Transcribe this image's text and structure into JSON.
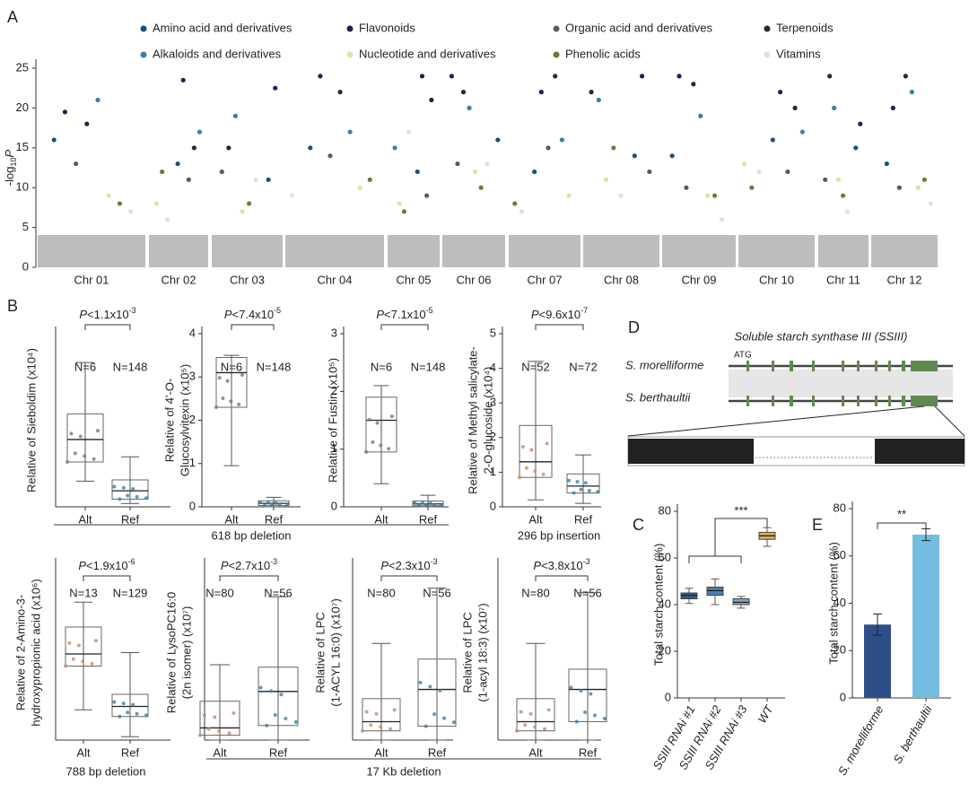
{
  "panel_labels": [
    "A",
    "B",
    "C",
    "D",
    "E"
  ],
  "groups": [
    "618 bp deletion",
    "296 bp insertion",
    "788 bp deletion",
    "17 Kb deletion"
  ],
  "diagram": {
    "title": "Soluble starch synthase III (SSIII)",
    "rows": [
      "S. morelliforme",
      "S. berthaultii"
    ],
    "start": "ATG"
  },
  "chart_data": [
    {
      "type": "manhattan",
      "ylabel": {
        "base": "-log",
        "sub": "10",
        "italic": "P"
      },
      "categories": [
        "Chr 01",
        "Chr 02",
        "Chr 03",
        "Chr 04",
        "Chr 05",
        "Chr 06",
        "Chr 07",
        "Chr 08",
        "Chr 09",
        "Chr 10",
        "Chr 11",
        "Chr 12"
      ],
      "ylim": [
        0,
        25
      ],
      "yticks": [
        0,
        5,
        10,
        15,
        20,
        25
      ],
      "series": [
        {
          "name": "Amino acid and derivatives",
          "color": "#1f4e79",
          "values": [
            16,
            13,
            11,
            15,
            12,
            16,
            12,
            14,
            14,
            16,
            15,
            13
          ]
        },
        {
          "name": "Flavonoids",
          "color": "#1a2450",
          "values": [
            19.5,
            23.5,
            22.5,
            24,
            24,
            24,
            22,
            24,
            24,
            22,
            18,
            20
          ]
        },
        {
          "name": "Organic acid and derivatives",
          "color": "#5a5a5a",
          "values": [
            13,
            11,
            12,
            14,
            9,
            13,
            15,
            12,
            10,
            12,
            11,
            10
          ]
        },
        {
          "name": "Terpenoids",
          "color": "#1c2b3a",
          "values": [
            18,
            15,
            15,
            22,
            21,
            22,
            24,
            22,
            23,
            20,
            24,
            24
          ]
        },
        {
          "name": "Alkaloids and derivatives",
          "color": "#3a7fa8",
          "values": [
            21,
            17,
            19,
            17,
            15,
            20,
            16,
            21,
            19,
            17,
            20,
            22
          ]
        },
        {
          "name": "Nucleotide and derivatives",
          "color": "#e3e0a0",
          "values": [
            9,
            8,
            7,
            10,
            8,
            12,
            9,
            11,
            9,
            13,
            11,
            10
          ]
        },
        {
          "name": "Phenolic acids",
          "color": "#6b7a3a",
          "values": [
            8,
            12,
            8,
            11,
            7,
            10,
            8,
            15,
            9,
            10,
            9,
            11
          ]
        },
        {
          "name": "Vitamins",
          "color": "#dfe4cf",
          "values": [
            7,
            6,
            11,
            9,
            17,
            13,
            7,
            9,
            6,
            12,
            7,
            8
          ]
        }
      ]
    },
    {
      "type": "box",
      "ylabel": [
        "Relative of Sieboldim  (x10⁴)"
      ],
      "pvalue": {
        "prefix": "P",
        "base": "<1.1x10",
        "exp": "-3"
      },
      "categories": [
        "Alt",
        "Ref"
      ],
      "n_labels": [
        "N=6",
        "N=148"
      ],
      "ylim": [
        0,
        2.7
      ],
      "colors": [
        "#777",
        "#3a7fa8"
      ],
      "boxes": [
        {
          "min": 0.4,
          "q1": 0.7,
          "median": 1.05,
          "q3": 1.45,
          "max": 2.25
        },
        {
          "min": 0.05,
          "q1": 0.12,
          "median": 0.25,
          "q3": 0.42,
          "max": 0.78
        }
      ]
    },
    {
      "type": "box",
      "ylabel": [
        "Relative of 4'-O-",
        "Glucosylvitexin  (x10⁵)"
      ],
      "pvalue": {
        "prefix": "P",
        "base": "<7.4x10",
        "exp": "-5"
      },
      "categories": [
        "Alt",
        "Ref"
      ],
      "n_labels": [
        "N=6",
        "N=148"
      ],
      "ylim": [
        0,
        4
      ],
      "yticks": [
        0,
        1,
        2,
        3,
        4
      ],
      "colors": [
        "#777",
        "#3a7fa8"
      ],
      "boxes": [
        {
          "min": 0.95,
          "q1": 2.3,
          "median": 3.1,
          "q3": 3.45,
          "max": 3.5
        },
        {
          "min": 0,
          "q1": 0.03,
          "median": 0.08,
          "q3": 0.14,
          "max": 0.22
        }
      ]
    },
    {
      "type": "box",
      "ylabel": [
        "Relative of Fustin  (x10⁵)"
      ],
      "pvalue": {
        "prefix": "P",
        "base": "<7.1x10",
        "exp": "-5"
      },
      "categories": [
        "Alt",
        "Ref"
      ],
      "n_labels": [
        "N=6",
        "N=148"
      ],
      "ylim": [
        0,
        3
      ],
      "yticks": [
        0,
        1,
        2,
        3
      ],
      "colors": [
        "#777",
        "#3a7fa8"
      ],
      "boxes": [
        {
          "min": 0.4,
          "q1": 0.95,
          "median": 1.5,
          "q3": 1.9,
          "max": 2.1
        },
        {
          "min": 0,
          "q1": 0.02,
          "median": 0.05,
          "q3": 0.1,
          "max": 0.2
        }
      ]
    },
    {
      "type": "box",
      "ylabel": [
        "Relative of Methyl salicylate-",
        "2-O-glucoside  (x10⁴)"
      ],
      "pvalue": {
        "prefix": "P",
        "base": "<9.6x10",
        "exp": "-7"
      },
      "categories": [
        "Alt",
        "Ref"
      ],
      "n_labels": [
        "N=52",
        "N=72"
      ],
      "ylim": [
        0,
        5
      ],
      "yticks": [
        0,
        1,
        2,
        3,
        4,
        5
      ],
      "colors": [
        "#c98a6a",
        "#3a7fa8"
      ],
      "boxes": [
        {
          "min": 0.2,
          "q1": 0.85,
          "median": 1.3,
          "q3": 2.35,
          "max": 4.2
        },
        {
          "min": 0.1,
          "q1": 0.4,
          "median": 0.6,
          "q3": 0.95,
          "max": 1.5
        }
      ]
    },
    {
      "type": "box",
      "ylabel": [
        "Relative of 2-Amino-3-",
        "hydroxypropionic acid  (x10⁶)"
      ],
      "pvalue": {
        "prefix": "P",
        "base": "<1.9x10",
        "exp": "-6"
      },
      "categories": [
        "Alt",
        "Ref"
      ],
      "n_labels": [
        "N=13",
        "N=129"
      ],
      "ylim": [
        0,
        2.6
      ],
      "colors": [
        "#c98a6a",
        "#3a7fa8"
      ],
      "boxes": [
        {
          "min": 0.45,
          "q1": 1.1,
          "median": 1.28,
          "q3": 1.68,
          "max": 2.05
        },
        {
          "min": 0.05,
          "q1": 0.35,
          "median": 0.5,
          "q3": 0.68,
          "max": 1.3
        }
      ]
    },
    {
      "type": "box",
      "ylabel": [
        "Relative of LysoPC16:0",
        "(2n isomer)  (x10⁷)"
      ],
      "pvalue": {
        "prefix": "P",
        "base": "<2.7x10",
        "exp": "-3"
      },
      "categories": [
        "Alt",
        "Ref"
      ],
      "n_labels": [
        "N=80",
        "N=56"
      ],
      "ylim": [
        0,
        3.6
      ],
      "colors": [
        "#c98a6a",
        "#3a7fa8"
      ],
      "boxes": [
        {
          "min": 0,
          "q1": 0.1,
          "median": 0.25,
          "q3": 0.8,
          "max": 1.55
        },
        {
          "min": 0,
          "q1": 0.3,
          "median": 1.0,
          "q3": 1.5,
          "max": 2.95
        }
      ]
    },
    {
      "type": "box",
      "ylabel": [
        "Relative of LPC",
        "(1-ACYL 16:0)  (x10⁷)"
      ],
      "pvalue": {
        "prefix": "P",
        "base": "<2.3x10",
        "exp": "-3"
      },
      "categories": [
        "Alt",
        "Ref"
      ],
      "n_labels": [
        "N=80",
        "N=56"
      ],
      "ylim": [
        0,
        1.9
      ],
      "colors": [
        "#c98a6a",
        "#3a7fa8"
      ],
      "boxes": [
        {
          "min": 0,
          "q1": 0.1,
          "median": 0.2,
          "q3": 0.45,
          "max": 1.05
        },
        {
          "min": 0,
          "q1": 0.15,
          "median": 0.55,
          "q3": 0.88,
          "max": 1.65
        }
      ]
    },
    {
      "type": "box",
      "ylabel": [
        "Relative of LPC",
        "(1-acyl 18:3)  (x10⁷)"
      ],
      "pvalue": {
        "prefix": "P",
        "base": "<3.8x10",
        "exp": "-3"
      },
      "categories": [
        "Alt",
        "Ref"
      ],
      "n_labels": [
        "N=80",
        "N=56"
      ],
      "ylim": [
        0,
        1.9
      ],
      "colors": [
        "#c98a6a",
        "#3a7fa8"
      ],
      "boxes": [
        {
          "min": 0,
          "q1": 0.1,
          "median": 0.2,
          "q3": 0.45,
          "max": 1.05
        },
        {
          "min": 0,
          "q1": 0.2,
          "median": 0.55,
          "q3": 0.77,
          "max": 1.6
        }
      ]
    },
    {
      "type": "box",
      "ylabel": [
        "Total starch content (%)"
      ],
      "significance": "***",
      "categories": [
        "SSIII RNAi #1",
        "SSIII RNAi #2",
        "SSIII RNAi #3",
        "WT"
      ],
      "ylim": [
        0,
        80
      ],
      "yticks": [
        0,
        20,
        40,
        60,
        80
      ],
      "colors": [
        "#2f5c8a",
        "#4a7fae",
        "#7fa6c9",
        "#d9b25a"
      ],
      "filled": true,
      "boxes": [
        {
          "min": 40.5,
          "q1": 42.5,
          "median": 44,
          "q3": 45,
          "max": 47
        },
        {
          "min": 40,
          "q1": 44,
          "median": 46,
          "q3": 47.5,
          "max": 51
        },
        {
          "min": 38.5,
          "q1": 40,
          "median": 41,
          "q3": 42.5,
          "max": 43.5
        },
        {
          "min": 65,
          "q1": 68,
          "median": 69.5,
          "q3": 71,
          "max": 73
        }
      ]
    },
    {
      "type": "bar",
      "ylabel": [
        "Total starch content (%)"
      ],
      "significance": "**",
      "categories": [
        "S. morelliforme",
        "S. berthaultii"
      ],
      "ylim": [
        0,
        80
      ],
      "yticks": [
        0,
        20,
        40,
        60,
        80
      ],
      "colors": [
        "#2b4f86",
        "#74bde0"
      ],
      "values": [
        31,
        69
      ],
      "errors": [
        4.5,
        2.5
      ]
    }
  ]
}
